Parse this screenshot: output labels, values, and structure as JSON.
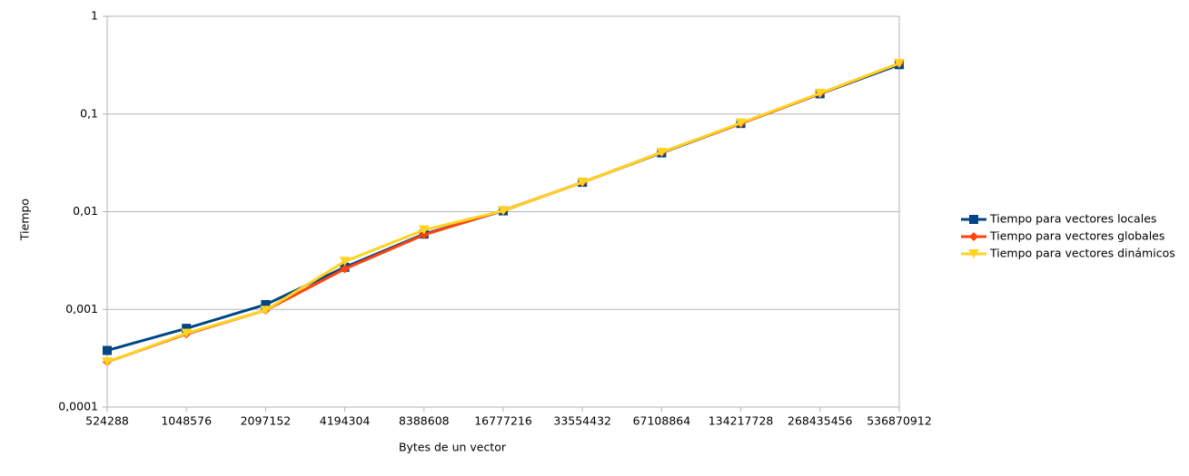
{
  "chart_data": {
    "type": "line",
    "y_scale": "log",
    "x_label": "Bytes de un vector",
    "y_label": "Tiempo",
    "categories": [
      "524288",
      "1048576",
      "2097152",
      "4194304",
      "8388608",
      "16777216",
      "33554432",
      "67108864",
      "134217728",
      "268435456",
      "536870912"
    ],
    "series": [
      {
        "name": "Tiempo para vectores locales",
        "color": "#004586",
        "marker": "square",
        "values": [
          0.00038,
          0.00064,
          0.00112,
          0.0027,
          0.0059,
          0.0102,
          0.02,
          0.04,
          0.08,
          0.161,
          0.32
        ]
      },
      {
        "name": "Tiempo para vectores globales",
        "color": "#ff420e",
        "marker": "diamond",
        "values": [
          0.00029,
          0.00056,
          0.00098,
          0.0026,
          0.0058,
          0.0103,
          0.02,
          0.0405,
          0.08,
          0.162,
          0.33
        ]
      },
      {
        "name": "Tiempo para vectores dinámicos",
        "color": "#ffd320",
        "marker": "triangle-down",
        "values": [
          0.00029,
          0.00057,
          0.00098,
          0.0031,
          0.0065,
          0.0102,
          0.02,
          0.0405,
          0.081,
          0.163,
          0.33
        ]
      }
    ],
    "ylim": [
      0.0001,
      1
    ],
    "yticks": [
      {
        "value": 0.0001,
        "label": "0,0001"
      },
      {
        "value": 0.001,
        "label": "0,001"
      },
      {
        "value": 0.01,
        "label": "0,01"
      },
      {
        "value": 0.1,
        "label": "0,1"
      },
      1
    ],
    "grid": true,
    "legend": "right"
  }
}
